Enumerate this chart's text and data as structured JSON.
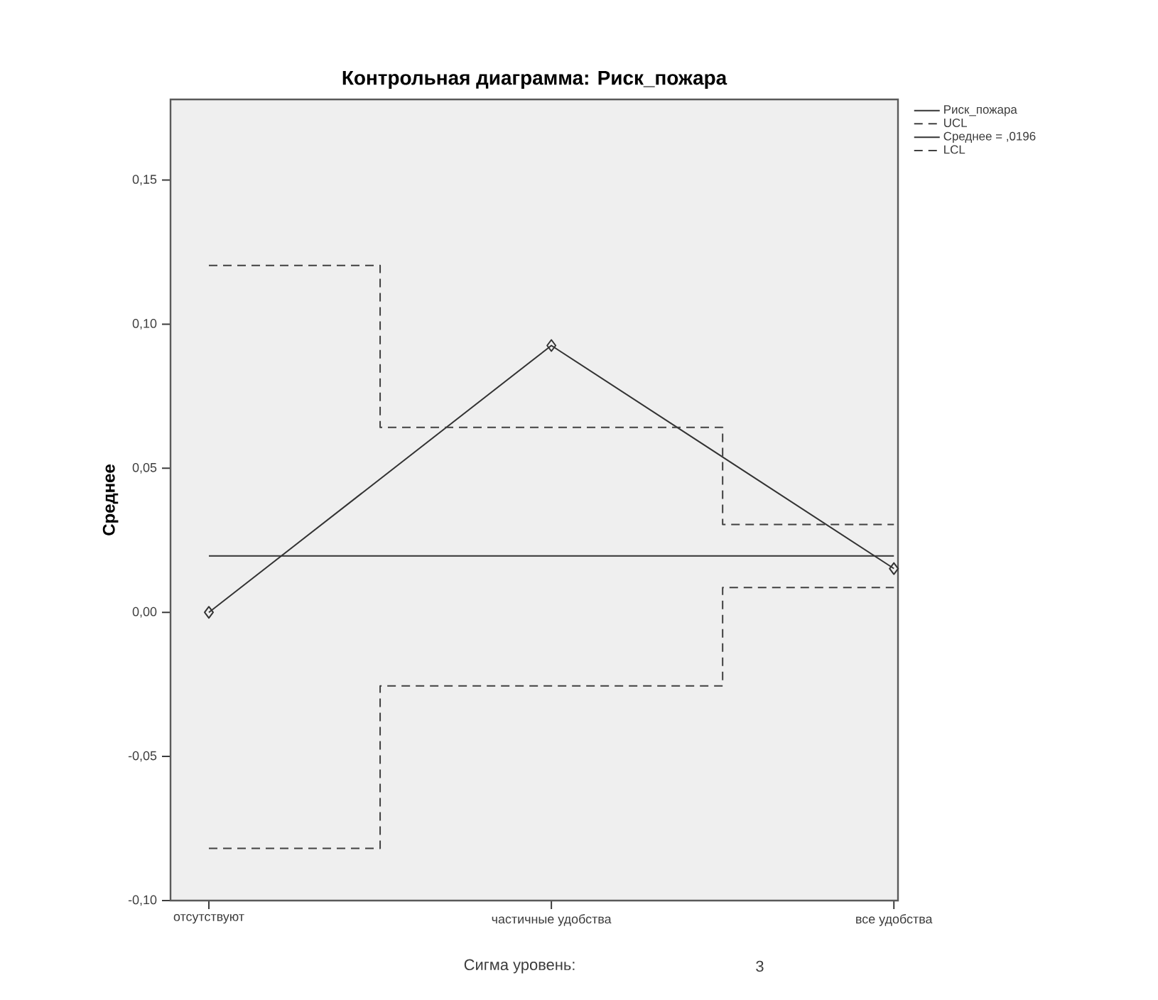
{
  "chart_data": {
    "type": "line",
    "title": "Контрольная диаграмма: Риск_пожара",
    "ylabel": "Среднее",
    "categories": [
      "отсутствуют",
      "частичные удобства",
      "все удобства"
    ],
    "series": [
      {
        "name": "Риск_пожара",
        "color": "#333333",
        "values": [
          0.0,
          0.0926,
          0.0152
        ],
        "marker": "diamond",
        "line_style": "solid"
      },
      {
        "name": "UCL",
        "type": "step",
        "color": "#404040",
        "values": [
          0.1204,
          0.0642,
          0.0305
        ],
        "marker": "none",
        "line_style": "dashed"
      },
      {
        "name": "Среднее = ,0196",
        "color": "#333333",
        "values": [
          0.0196,
          0.0196,
          0.0196
        ],
        "marker": "none",
        "line_style": "solid"
      },
      {
        "name": "LCL",
        "type": "step",
        "color": "#404040",
        "values": [
          -0.0819,
          -0.0255,
          0.0086
        ],
        "marker": "none",
        "line_style": "dashed"
      }
    ],
    "ylim": [
      -0.1,
      0.178
    ],
    "yticks": [
      {
        "value": -0.1,
        "label": "-0,10"
      },
      {
        "value": -0.05,
        "label": "-0,05"
      },
      {
        "value": 0.0,
        "label": "0,00"
      },
      {
        "value": 0.05,
        "label": "0,05"
      },
      {
        "value": 0.1,
        "label": "0,10"
      },
      {
        "value": 0.15,
        "label": "0,15"
      }
    ],
    "legend": "top right",
    "grid": false,
    "annotations": [
      "Сигма уровень:",
      "3"
    ]
  }
}
